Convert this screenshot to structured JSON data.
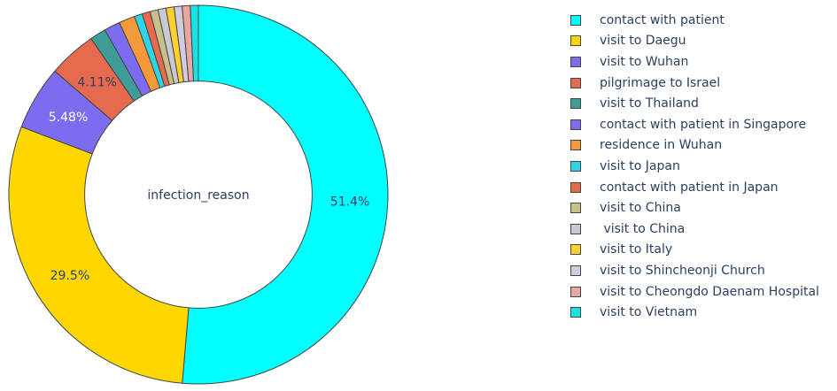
{
  "chart_data": {
    "type": "pie",
    "hole": 0.6,
    "center_label": "infection_reason",
    "legend_position": "top-right",
    "slices": [
      {
        "label": "contact with patient",
        "value": 51.4,
        "text": "51.4%",
        "color": "#00FFFF"
      },
      {
        "label": "visit to Daegu",
        "value": 29.5,
        "text": "29.5%",
        "color": "#FFD700"
      },
      {
        "label": "visit to Wuhan",
        "value": 5.48,
        "text": "5.48%",
        "color": "#7B6CF0"
      },
      {
        "label": "pilgrimage to Israel",
        "value": 4.11,
        "text": "4.11%",
        "color": "#E66B4E"
      },
      {
        "label": "visit to Thailand",
        "value": 1.37,
        "text": "",
        "color": "#3F9C97"
      },
      {
        "label": "contact with patient in Singapore",
        "value": 1.37,
        "text": "",
        "color": "#7B6CF0"
      },
      {
        "label": "residence in Wuhan",
        "value": 1.37,
        "text": "",
        "color": "#F59A3A"
      },
      {
        "label": "visit to Japan",
        "value": 0.685,
        "text": "",
        "color": "#2FD4E8"
      },
      {
        "label": "contact with patient in Japan",
        "value": 0.685,
        "text": "",
        "color": "#E66B4E"
      },
      {
        "label": "visit to China",
        "value": 0.685,
        "text": "",
        "color": "#C8C08A"
      },
      {
        "label": " visit to China",
        "value": 0.685,
        "text": "",
        "color": "#C9C9D6"
      },
      {
        "label": "visit to Italy",
        "value": 0.685,
        "text": "",
        "color": "#FFD02E"
      },
      {
        "label": "visit to Shincheonji Church",
        "value": 0.685,
        "text": "",
        "color": "#D0CCE0"
      },
      {
        "label": "visit to Cheongdo Daenam Hospital",
        "value": 0.685,
        "text": "",
        "color": "#E8A7A0"
      },
      {
        "label": "visit to Vietnam",
        "value": 0.685,
        "text": "",
        "color": "#16E4E4"
      }
    ]
  }
}
